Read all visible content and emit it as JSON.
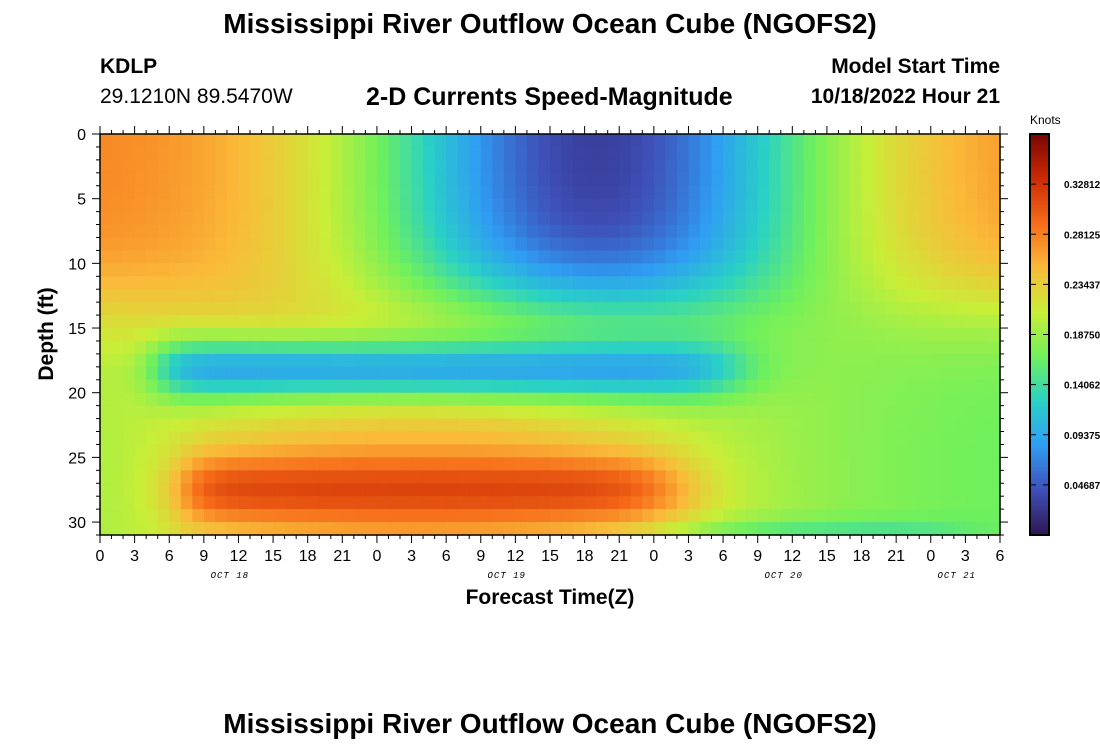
{
  "header": {
    "title": "Mississippi River Outflow Ocean Cube (NGOFS2)",
    "station_id": "KDLP",
    "coordinates": "29.1210N  89.5470W",
    "subtitle": "2-D Currents Speed-Magnitude",
    "model_start_label": "Model Start Time",
    "model_start_value": "10/18/2022 Hour 21"
  },
  "footer": {
    "repeated_title": "Mississippi River Outflow Ocean Cube (NGOFS2)"
  },
  "chart_data": {
    "type": "heatmap",
    "title": "2-D Currents Speed-Magnitude",
    "xlabel": "Forecast Time(Z)",
    "ylabel": "Depth (ft)",
    "x_ticks": [
      "0",
      "3",
      "6",
      "9",
      "12",
      "15",
      "18",
      "21",
      "0",
      "3",
      "6",
      "9",
      "12",
      "15",
      "18",
      "21",
      "0",
      "3",
      "6",
      "9",
      "12",
      "15",
      "18",
      "21",
      "0",
      "3",
      "6"
    ],
    "x_range_hours": [
      0,
      78
    ],
    "date_labels": [
      {
        "label": "OCT 18",
        "hour": 11.25
      },
      {
        "label": "OCT 19",
        "hour": 35.25
      },
      {
        "label": "OCT 20",
        "hour": 59.25
      },
      {
        "label": "OCT 21",
        "hour": 74.25
      }
    ],
    "y_ticks": [
      "0",
      "5",
      "10",
      "15",
      "20",
      "25",
      "30"
    ],
    "y_range_ft": [
      0,
      31
    ],
    "y_inverted": true,
    "colorbar": {
      "unit_label": "Knots",
      "tick_labels": [
        "0.32812",
        "0.28125",
        "0.23437",
        "0.18750",
        "0.14062",
        "0.09375",
        "0.04687"
      ],
      "range": [
        0.0,
        0.375
      ],
      "colors": [
        "#2f1650",
        "#3e4fb8",
        "#2f9df3",
        "#29d1c6",
        "#6ff05c",
        "#c9ee37",
        "#faba39",
        "#f66b19",
        "#cb2a04",
        "#7a0403"
      ]
    },
    "description_profile": {
      "surface_layer": "strong currents (~0.28 kt) at forecast start and end, weak (~0.03 kt) around hour 42",
      "bottom_layer_25_30ft": "strong currents (~0.32 kt) from hour 6 to hour 51",
      "mid_layer_16_21ft": "weak currents (~0.08-0.10 kt) from hour 6 to hour 54"
    }
  }
}
